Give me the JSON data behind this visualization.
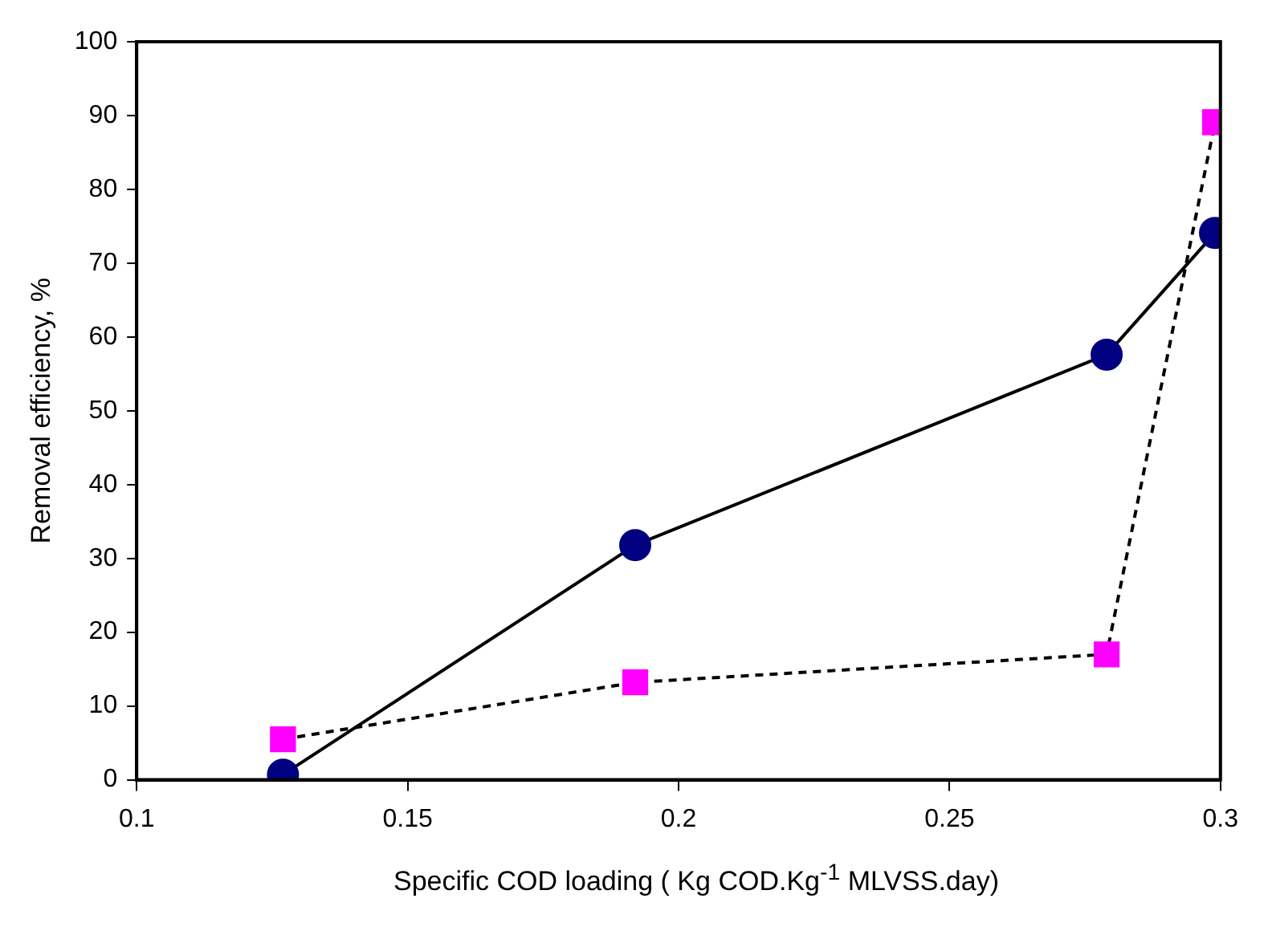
{
  "chart_data": {
    "type": "line",
    "xlabel": "Specific COD loading ( Kg COD.Kg$^{-1}$ MLVSS.day)",
    "ylabel": "Removal efficiency, %",
    "x": [
      0.127,
      0.192,
      0.279,
      0.299
    ],
    "series": [
      {
        "color": "#000080",
        "values": [
          0.7,
          31.8,
          57.6,
          74.1
        ],
        "marker": "circle",
        "line_style": "solid"
      },
      {
        "color": "#ff00ff",
        "values": [
          5.5,
          13.2,
          17.0,
          89.1
        ],
        "marker": "square",
        "line_style": "dashed"
      }
    ],
    "xlim": [
      0.1,
      0.3
    ],
    "xticks": [
      0.1,
      0.15,
      0.2,
      0.25,
      0.3
    ],
    "ylim": [
      0,
      100
    ],
    "yticks": [
      0,
      10,
      20,
      30,
      40,
      50,
      60,
      70,
      80,
      90,
      100
    ],
    "grid": false,
    "legend": false
  }
}
